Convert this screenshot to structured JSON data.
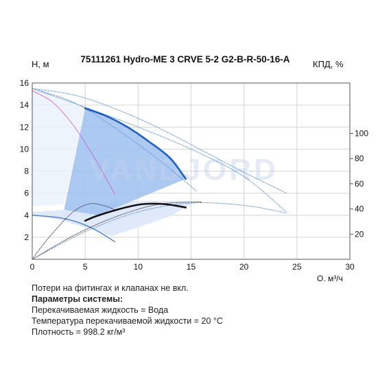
{
  "chart_data": {
    "type": "line",
    "title": "75111261 Hydro-ME 3 CRVE 5-2 G2-B-R-50-16-A",
    "ylabel": "H, м",
    "y2label": "КПД, %",
    "xlabel": "Q, м³/ч",
    "xlim": [
      0,
      30
    ],
    "ylim": [
      0,
      16
    ],
    "y2lim": [
      0,
      140
    ],
    "xticks": [
      "0",
      "5",
      "10",
      "15",
      "20",
      "25",
      "30"
    ],
    "yticks": [
      "2",
      "4",
      "6",
      "8",
      "10",
      "12",
      "14",
      "16"
    ],
    "y2ticks": [
      "20",
      "40",
      "60",
      "80",
      "100"
    ],
    "watermark": "VANDJORD",
    "grid": true,
    "operating_area": [
      [
        5,
        13.7
      ],
      [
        7,
        13.0
      ],
      [
        9,
        12.0
      ],
      [
        11,
        10.7
      ],
      [
        13,
        9.2
      ],
      [
        14.5,
        7.3
      ],
      [
        6.2,
        4.0
      ],
      [
        3,
        4.5
      ]
    ],
    "operating_area_lower": [
      [
        0,
        4.0
      ],
      [
        2.5,
        3.6
      ],
      [
        5,
        2.9
      ],
      [
        7.5,
        2.1
      ],
      [
        10,
        2.9
      ],
      [
        13,
        3.9
      ],
      [
        15,
        5.0
      ],
      [
        16,
        5.3
      ],
      [
        8,
        5.3
      ],
      [
        3,
        4.5
      ],
      [
        0,
        4.3
      ]
    ],
    "background_area": [
      [
        0,
        15.5
      ],
      [
        5,
        13.7
      ],
      [
        3,
        5.0
      ],
      [
        0,
        4.8
      ]
    ],
    "series": [
      {
        "name": "",
        "role": "head_main",
        "color": "#1f5fbf",
        "x": [
          5,
          7,
          9,
          11,
          13,
          14.5
        ],
        "y": [
          13.7,
          13.0,
          12.0,
          10.7,
          9.2,
          7.3
        ]
      },
      {
        "name": "",
        "role": "efficiency_main",
        "color": "#111111",
        "x": [
          5,
          6,
          8,
          10,
          11.5,
          13,
          14.5
        ],
        "y": [
          3.5,
          3.9,
          4.5,
          4.95,
          5.05,
          4.95,
          4.7
        ]
      },
      {
        "name": "",
        "role": "head_max",
        "color": "#6a9bd8",
        "x": [
          0,
          4,
          8,
          12,
          16,
          20,
          24
        ],
        "y": [
          15.5,
          14.9,
          13.6,
          11.9,
          9.9,
          7.9,
          6.0
        ]
      },
      {
        "name": "",
        "role": "head_curve_b",
        "color": "#6a9bd8",
        "x": [
          0,
          4,
          8,
          12,
          15.5
        ],
        "y": [
          15.5,
          14.2,
          11.8,
          9.0,
          6.2
        ]
      },
      {
        "name": "",
        "role": "head_curve_c",
        "color": "#6a9bd8",
        "x": [
          0,
          5,
          10,
          15,
          20,
          24
        ],
        "y": [
          15.5,
          13.8,
          12.0,
          10.0,
          7.5,
          4.3
        ]
      },
      {
        "name": "",
        "role": "head_min",
        "color": "#4a7fc8",
        "x": [
          0,
          3,
          5.5,
          7.8
        ],
        "y": [
          4.0,
          3.7,
          2.9,
          1.6
        ]
      },
      {
        "name": "",
        "role": "power_curve",
        "color": "#cc66cc",
        "x": [
          0,
          2,
          4,
          6,
          7.8
        ],
        "y": [
          15.3,
          14.2,
          12.0,
          9.0,
          5.9
        ]
      },
      {
        "name": "",
        "role": "eff_curve_a",
        "color": "#444444",
        "x": [
          0,
          1,
          2.5,
          4,
          5.5,
          7,
          8
        ],
        "y": [
          0,
          1.3,
          3.0,
          4.4,
          5.05,
          4.8,
          4.4
        ]
      },
      {
        "name": "",
        "role": "eff_curve_b",
        "color": "#444444",
        "x": [
          0,
          4,
          8,
          12,
          16
        ],
        "y": [
          0,
          2.2,
          3.9,
          5.0,
          5.2
        ]
      },
      {
        "name": "",
        "role": "eff_curve_c",
        "color": "#6a9bd8",
        "x": [
          0,
          5,
          10,
          15,
          20,
          24
        ],
        "y": [
          0,
          2.5,
          4.3,
          5.1,
          4.9,
          4.2
        ]
      }
    ]
  },
  "info": {
    "note": "Потери на фитингах и клапанах не вкл.",
    "params_title": "Параметры системы:",
    "liquid": "Перекачиваемая жидкость = Вода",
    "temperature": "Температура перекачиваемой жидкости = 20 °C",
    "density": "Плотность = 998.2 кг/м³"
  }
}
